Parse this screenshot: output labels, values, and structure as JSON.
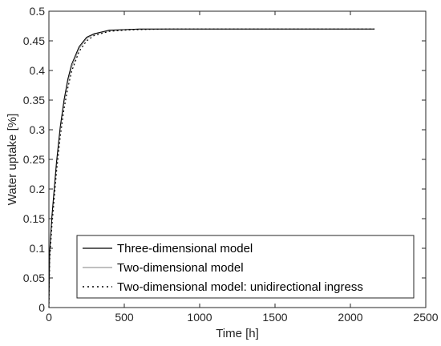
{
  "chart_data": {
    "type": "line",
    "title": "",
    "xlabel": "Time [h]",
    "ylabel": "Water uptake [%]",
    "xlim": [
      0,
      2500
    ],
    "ylim": [
      0,
      0.5
    ],
    "x_ticks": [
      0,
      500,
      1000,
      1500,
      2000,
      2500
    ],
    "y_ticks": [
      0,
      0.05,
      0.1,
      0.15,
      0.2,
      0.25,
      0.3,
      0.35,
      0.4,
      0.45,
      0.5
    ],
    "x_tick_labels": [
      "0",
      "500",
      "1000",
      "1500",
      "2000",
      "2500"
    ],
    "y_tick_labels": [
      "0",
      "0.05",
      "0.1",
      "0.15",
      "0.2",
      "0.25",
      "0.3",
      "0.35",
      "0.4",
      "0.45",
      "0.5"
    ],
    "grid": false,
    "legend_position": "bottom-right",
    "series": [
      {
        "name": "Three-dimensional model",
        "color": "#000000",
        "style": "solid",
        "x": [
          0,
          5,
          10,
          20,
          30,
          50,
          75,
          100,
          125,
          150,
          200,
          250,
          300,
          400,
          500,
          600,
          800,
          1000,
          1500,
          2000,
          2160
        ],
        "y": [
          0,
          0.095,
          0.115,
          0.155,
          0.185,
          0.245,
          0.305,
          0.35,
          0.385,
          0.41,
          0.44,
          0.456,
          0.462,
          0.468,
          0.469,
          0.47,
          0.47,
          0.47,
          0.47,
          0.47,
          0.47
        ]
      },
      {
        "name": "Two-dimensional model",
        "color": "#9a9a9a",
        "style": "solid",
        "x": [
          0,
          5,
          10,
          20,
          30,
          50,
          75,
          100,
          125,
          150,
          200,
          250,
          300,
          400,
          500,
          600,
          800,
          1000,
          1500,
          2000,
          2160
        ],
        "y": [
          0,
          0.09,
          0.11,
          0.15,
          0.18,
          0.24,
          0.3,
          0.345,
          0.38,
          0.405,
          0.437,
          0.454,
          0.461,
          0.467,
          0.469,
          0.47,
          0.47,
          0.47,
          0.47,
          0.47,
          0.47
        ]
      },
      {
        "name": "Two-dimensional model: unidirectional ingress",
        "color": "#000000",
        "style": "dotted",
        "x": [
          0,
          5,
          10,
          20,
          30,
          50,
          75,
          100,
          125,
          150,
          200,
          250,
          300,
          400,
          500,
          600,
          800,
          1000,
          1500,
          2000,
          2160
        ],
        "y": [
          0,
          0.08,
          0.1,
          0.138,
          0.168,
          0.228,
          0.288,
          0.335,
          0.37,
          0.398,
          0.432,
          0.45,
          0.459,
          0.466,
          0.468,
          0.469,
          0.47,
          0.47,
          0.47,
          0.47,
          0.47
        ]
      }
    ]
  }
}
